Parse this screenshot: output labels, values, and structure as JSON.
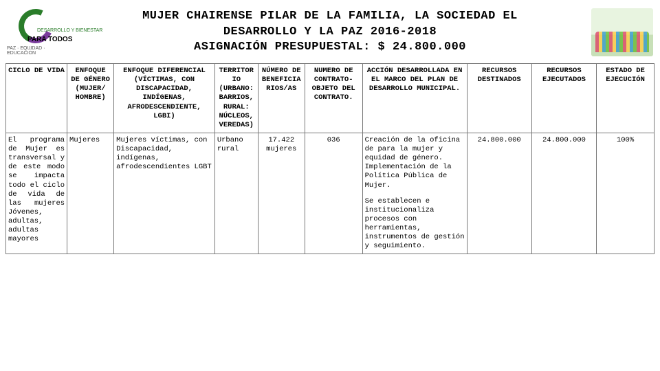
{
  "header": {
    "logo_left": {
      "top_text": "DESARROLLO Y BIENESTAR",
      "main_text": "PARA TODOS",
      "bottom_text": "PAZ · EQUIDAD · EDUCACIÓN"
    },
    "title_line1": "MUJER CHAIRENSE PILAR DE LA FAMILIA, LA SOCIEDAD EL",
    "title_line2": "DESARROLLO Y LA PAZ 2016-2018",
    "title_line3": "ASIGNACIÓN PRESUPUESTAL: $ 24.800.000"
  },
  "table": {
    "headers": [
      "CICLO DE VIDA",
      "ENFOQUE DE GÉNERO (MUJER/ HOMBRE)",
      "ENFOQUE DIFERENCIAL (VÍCTIMAS, CON DISCAPACIDAD, INDÍGENAS, AFRODESCENDIENTE, LGBI)",
      "TERRITORIO (URBANO: BARRIOS, RURAL: NÚCLEOS, VEREDAS)",
      "NÚMERO DE BENEFICIARIOS/AS",
      "NUMERO DE CONTRATO-OBJETO DEL CONTRATO.",
      "ACCIÓN DESARROLLADA  EN EL MARCO DEL PLAN DE DESARROLLO MUNICIPAL.",
      "RECURSOS DESTINADOS",
      "RECURSOS EJECUTADOS",
      "ESTADO DE EJECUCIÓN"
    ],
    "row": {
      "ciclo": "El programa de Mujer es transversal y de este modo se impacta todo el ciclo de vida de las mujeres Jóvenes, adultas, adultas mayores",
      "genero": "Mujeres",
      "diferencial": "Mujeres víctimas, con Discapacidad, indígenas, afrodescendientes LGBT",
      "territorio": "Urbano rural",
      "beneficiarios": "17.422 mujeres",
      "contrato": "036",
      "accion_p1": "Creación de la oficina de para la mujer y equidad de género. Implementación de la Política Pública de Mujer.",
      "accion_p2": "Se establecen e institucionaliza procesos con herramientas, instrumentos de gestión y seguimiento.",
      "destinados": "24.800.000",
      "ejecutados": "24.800.000",
      "estado": "100%"
    }
  }
}
